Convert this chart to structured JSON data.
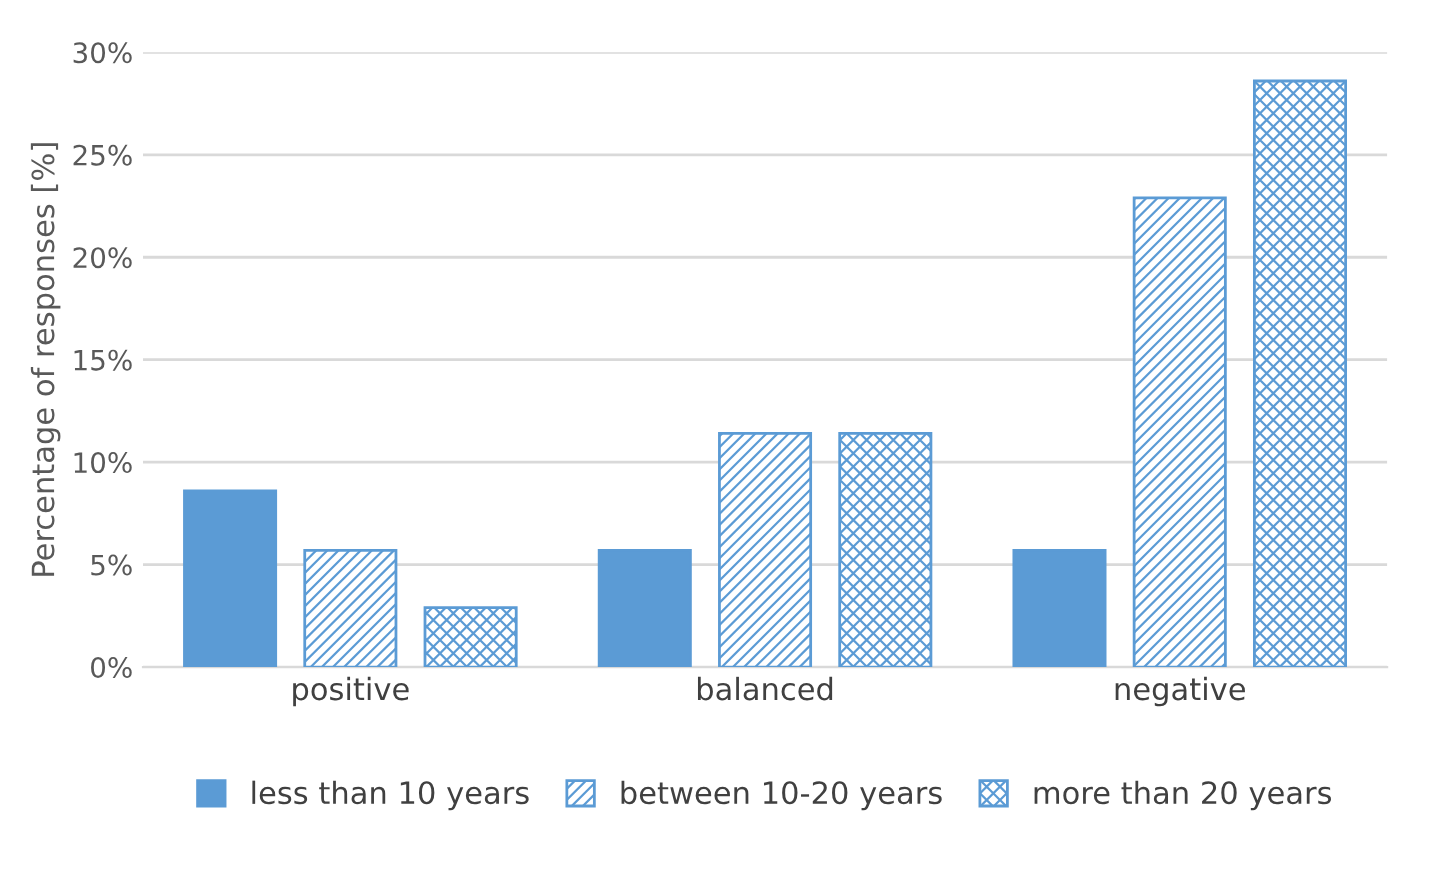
{
  "chart_data": {
    "type": "bar",
    "ylabel": "Percentage of responses [%]",
    "categories": [
      "positive",
      "balanced",
      "negative"
    ],
    "series": [
      {
        "name": "less than 10 years",
        "color": "#5b9bd5",
        "values": [
          8.6,
          5.7,
          5.7
        ]
      },
      {
        "name": "between 10-20 years",
        "color": "#5b9bd5",
        "values": [
          5.7,
          11.4,
          22.9
        ]
      },
      {
        "name": "more than 20 years",
        "color": "#5b9bd5",
        "values": [
          2.9,
          11.4,
          28.6
        ]
      }
    ],
    "ylim": [
      0,
      30
    ],
    "yticks": [
      {
        "value": 0,
        "label": "0%"
      },
      {
        "value": 5,
        "label": "5%"
      },
      {
        "value": 10,
        "label": "10%"
      },
      {
        "value": 15,
        "label": "15%"
      },
      {
        "value": 20,
        "label": "20%"
      },
      {
        "value": 25,
        "label": "25%"
      },
      {
        "value": 30,
        "label": "30%"
      }
    ],
    "grid": "y",
    "legend": "bottom"
  }
}
